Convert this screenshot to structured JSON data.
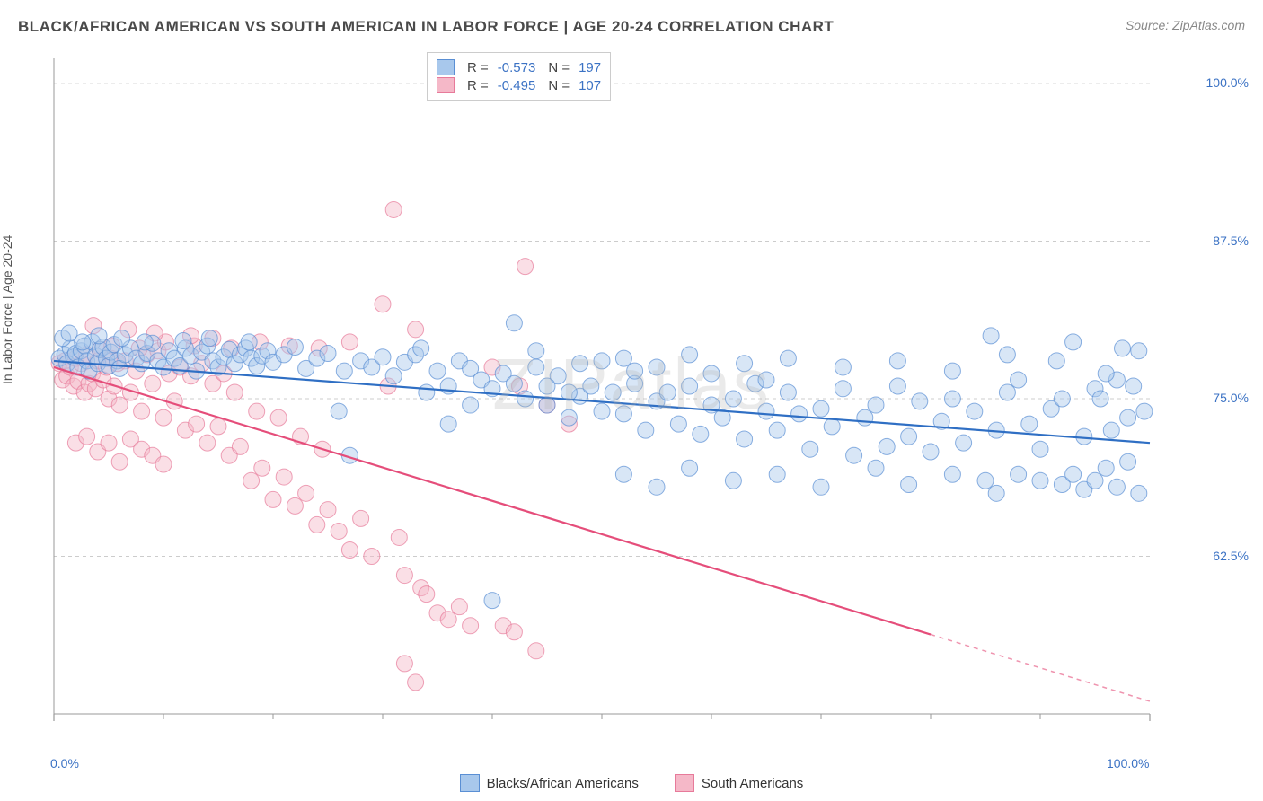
{
  "title": "BLACK/AFRICAN AMERICAN VS SOUTH AMERICAN IN LABOR FORCE | AGE 20-24 CORRELATION CHART",
  "source": "Source: ZipAtlas.com",
  "watermark": "ZIPatlas",
  "y_axis_label": "In Labor Force | Age 20-24",
  "chart": {
    "type": "scatter",
    "xlim": [
      0,
      100
    ],
    "ylim": [
      50,
      102
    ],
    "x_ticks": [
      0,
      100
    ],
    "x_tick_labels": [
      "0.0%",
      "100.0%"
    ],
    "x_minor_ticks": [
      10,
      20,
      30,
      40,
      50,
      60,
      70,
      80,
      90
    ],
    "y_ticks": [
      62.5,
      75.0,
      87.5,
      100.0
    ],
    "y_tick_labels": [
      "62.5%",
      "75.0%",
      "87.5%",
      "100.0%"
    ],
    "background_color": "#ffffff",
    "grid_color": "#cccccc",
    "grid_dash": "4,4",
    "axis_color": "#999999",
    "marker_radius": 9,
    "marker_opacity": 0.45,
    "line_width": 2.2
  },
  "series": [
    {
      "name": "Blacks/African Americans",
      "fill": "#a8c8ec",
      "stroke": "#5a8fd4",
      "line_color": "#2f6fc4",
      "R": "-0.573",
      "N": "197",
      "trend": {
        "x1": 0,
        "y1": 78.0,
        "x2": 100,
        "y2": 71.5,
        "solid_until": 100
      },
      "points": [
        [
          0.5,
          78.2
        ],
        [
          1,
          78.5
        ],
        [
          1.2,
          77.8
        ],
        [
          1.5,
          79.0
        ],
        [
          1.8,
          78.3
        ],
        [
          2,
          78.6
        ],
        [
          2.2,
          77.5
        ],
        [
          2.5,
          78.8
        ],
        [
          2.8,
          79.2
        ],
        [
          3,
          78.0
        ],
        [
          3.2,
          77.2
        ],
        [
          3.5,
          79.5
        ],
        [
          3.8,
          78.4
        ],
        [
          4,
          77.8
        ],
        [
          4.2,
          78.9
        ],
        [
          4.5,
          79.1
        ],
        [
          4.8,
          78.2
        ],
        [
          5,
          77.6
        ],
        [
          5.2,
          78.7
        ],
        [
          5.5,
          79.3
        ],
        [
          5.8,
          78.0
        ],
        [
          6,
          77.4
        ],
        [
          6.5,
          78.5
        ],
        [
          7,
          79.0
        ],
        [
          7.5,
          78.2
        ],
        [
          8,
          77.8
        ],
        [
          8.5,
          78.6
        ],
        [
          9,
          79.4
        ],
        [
          9.5,
          78.0
        ],
        [
          10,
          77.5
        ],
        [
          10.5,
          78.8
        ],
        [
          11,
          78.2
        ],
        [
          11.5,
          77.6
        ],
        [
          12,
          79.0
        ],
        [
          12.5,
          78.4
        ],
        [
          13,
          77.2
        ],
        [
          13.5,
          78.7
        ],
        [
          14,
          79.2
        ],
        [
          14.5,
          78.0
        ],
        [
          15,
          77.5
        ],
        [
          15.5,
          78.3
        ],
        [
          16,
          78.9
        ],
        [
          16.5,
          77.8
        ],
        [
          17,
          78.5
        ],
        [
          17.5,
          79.0
        ],
        [
          18,
          78.2
        ],
        [
          18.5,
          77.6
        ],
        [
          19,
          78.4
        ],
        [
          19.5,
          78.8
        ],
        [
          20,
          77.9
        ],
        [
          21,
          78.5
        ],
        [
          22,
          79.1
        ],
        [
          23,
          77.4
        ],
        [
          24,
          78.2
        ],
        [
          25,
          78.6
        ],
        [
          26,
          74.0
        ],
        [
          26.5,
          77.2
        ],
        [
          27,
          70.5
        ],
        [
          28,
          78.0
        ],
        [
          29,
          77.5
        ],
        [
          30,
          78.3
        ],
        [
          31,
          76.8
        ],
        [
          32,
          77.9
        ],
        [
          33,
          78.5
        ],
        [
          34,
          75.5
        ],
        [
          35,
          77.2
        ],
        [
          36,
          76.0
        ],
        [
          37,
          78.0
        ],
        [
          38,
          77.4
        ],
        [
          39,
          76.5
        ],
        [
          40,
          75.8
        ],
        [
          41,
          77.0
        ],
        [
          42,
          76.2
        ],
        [
          43,
          75.0
        ],
        [
          44,
          77.5
        ],
        [
          45,
          74.5
        ],
        [
          46,
          76.8
        ],
        [
          47,
          73.5
        ],
        [
          48,
          75.2
        ],
        [
          49,
          76.0
        ],
        [
          50,
          74.0
        ],
        [
          51,
          75.5
        ],
        [
          52,
          73.8
        ],
        [
          53,
          76.2
        ],
        [
          54,
          72.5
        ],
        [
          55,
          74.8
        ],
        [
          56,
          75.5
        ],
        [
          57,
          73.0
        ],
        [
          58,
          76.0
        ],
        [
          59,
          72.2
        ],
        [
          60,
          74.5
        ],
        [
          61,
          73.5
        ],
        [
          62,
          75.0
        ],
        [
          63,
          71.8
        ],
        [
          64,
          76.2
        ],
        [
          65,
          74.0
        ],
        [
          66,
          72.5
        ],
        [
          67,
          75.5
        ],
        [
          68,
          73.8
        ],
        [
          69,
          71.0
        ],
        [
          70,
          74.2
        ],
        [
          71,
          72.8
        ],
        [
          72,
          75.8
        ],
        [
          73,
          70.5
        ],
        [
          74,
          73.5
        ],
        [
          75,
          74.5
        ],
        [
          76,
          71.2
        ],
        [
          77,
          76.0
        ],
        [
          78,
          72.0
        ],
        [
          79,
          74.8
        ],
        [
          80,
          70.8
        ],
        [
          81,
          73.2
        ],
        [
          82,
          75.0
        ],
        [
          83,
          71.5
        ],
        [
          84,
          74.0
        ],
        [
          85,
          68.5
        ],
        [
          86,
          72.5
        ],
        [
          87,
          75.5
        ],
        [
          88,
          69.0
        ],
        [
          89,
          73.0
        ],
        [
          90,
          71.0
        ],
        [
          91,
          74.2
        ],
        [
          92,
          68.2
        ],
        [
          93,
          79.5
        ],
        [
          94,
          72.0
        ],
        [
          95,
          75.8
        ],
        [
          96,
          69.5
        ],
        [
          97,
          76.5
        ],
        [
          98,
          73.5
        ],
        [
          99,
          78.8
        ],
        [
          0.8,
          79.8
        ],
        [
          1.4,
          80.2
        ],
        [
          2.6,
          79.5
        ],
        [
          4.1,
          80.0
        ],
        [
          6.2,
          79.8
        ],
        [
          8.3,
          79.5
        ],
        [
          11.8,
          79.6
        ],
        [
          14.2,
          79.8
        ],
        [
          17.8,
          79.5
        ],
        [
          33.5,
          79.0
        ],
        [
          40,
          59.0
        ],
        [
          42,
          81.0
        ],
        [
          52,
          69.0
        ],
        [
          55,
          68.0
        ],
        [
          58,
          69.5
        ],
        [
          62,
          68.5
        ],
        [
          66,
          69.0
        ],
        [
          70,
          68.0
        ],
        [
          75,
          69.5
        ],
        [
          78,
          68.2
        ],
        [
          82,
          69.0
        ],
        [
          85.5,
          80.0
        ],
        [
          86,
          67.5
        ],
        [
          88,
          76.5
        ],
        [
          90,
          68.5
        ],
        [
          91.5,
          78.0
        ],
        [
          92,
          75.0
        ],
        [
          93,
          69.0
        ],
        [
          94,
          67.8
        ],
        [
          95,
          68.5
        ],
        [
          95.5,
          75.0
        ],
        [
          96,
          77.0
        ],
        [
          96.5,
          72.5
        ],
        [
          97,
          68.0
        ],
        [
          97.5,
          79.0
        ],
        [
          98,
          70.0
        ],
        [
          98.5,
          76.0
        ],
        [
          99,
          67.5
        ],
        [
          99.5,
          74.0
        ],
        [
          50,
          78.0
        ],
        [
          55,
          77.5
        ],
        [
          60,
          77.0
        ],
        [
          65,
          76.5
        ],
        [
          48,
          77.8
        ],
        [
          53,
          77.2
        ],
        [
          58,
          78.5
        ],
        [
          63,
          77.8
        ],
        [
          67,
          78.2
        ],
        [
          72,
          77.5
        ],
        [
          77,
          78.0
        ],
        [
          82,
          77.2
        ],
        [
          87,
          78.5
        ],
        [
          44,
          78.8
        ],
        [
          52,
          78.2
        ],
        [
          45,
          76.0
        ],
        [
          47,
          75.5
        ],
        [
          38,
          74.5
        ],
        [
          36,
          73.0
        ]
      ]
    },
    {
      "name": "South Americans",
      "fill": "#f5b8c8",
      "stroke": "#e77a9a",
      "line_color": "#e54d7a",
      "R": "-0.495",
      "N": "107",
      "trend": {
        "x1": 0,
        "y1": 77.5,
        "x2": 100,
        "y2": 51.0,
        "solid_until": 80
      },
      "points": [
        [
          0.5,
          77.8
        ],
        [
          0.8,
          76.5
        ],
        [
          1,
          78.0
        ],
        [
          1.2,
          76.8
        ],
        [
          1.5,
          77.5
        ],
        [
          1.8,
          76.0
        ],
        [
          2,
          78.2
        ],
        [
          2.2,
          76.4
        ],
        [
          2.5,
          77.8
        ],
        [
          2.8,
          75.5
        ],
        [
          3,
          78.5
        ],
        [
          3.2,
          76.2
        ],
        [
          3.5,
          77.0
        ],
        [
          3.8,
          75.8
        ],
        [
          4,
          78.0
        ],
        [
          4.2,
          78.9
        ],
        [
          4.5,
          76.5
        ],
        [
          4.8,
          77.5
        ],
        [
          5,
          75.0
        ],
        [
          5.2,
          78.2
        ],
        [
          5.5,
          76.0
        ],
        [
          5.8,
          77.8
        ],
        [
          6,
          74.5
        ],
        [
          6.5,
          78.0
        ],
        [
          7,
          75.5
        ],
        [
          7.5,
          77.2
        ],
        [
          8,
          74.0
        ],
        [
          8.5,
          78.5
        ],
        [
          9,
          76.2
        ],
        [
          9.5,
          78.8
        ],
        [
          10,
          73.5
        ],
        [
          10.5,
          77.0
        ],
        [
          11,
          74.8
        ],
        [
          11.5,
          77.5
        ],
        [
          12,
          72.5
        ],
        [
          12.5,
          76.8
        ],
        [
          13,
          73.0
        ],
        [
          13.5,
          77.8
        ],
        [
          14,
          71.5
        ],
        [
          14.5,
          76.2
        ],
        [
          15,
          72.8
        ],
        [
          15.5,
          77.0
        ],
        [
          16,
          70.5
        ],
        [
          16.5,
          75.5
        ],
        [
          17,
          71.2
        ],
        [
          18,
          68.5
        ],
        [
          18.5,
          74.0
        ],
        [
          19,
          69.5
        ],
        [
          20,
          67.0
        ],
        [
          20.5,
          73.5
        ],
        [
          21,
          68.8
        ],
        [
          22,
          66.5
        ],
        [
          22.5,
          72.0
        ],
        [
          23,
          67.5
        ],
        [
          24,
          65.0
        ],
        [
          24.5,
          71.0
        ],
        [
          25,
          66.2
        ],
        [
          26,
          64.5
        ],
        [
          27,
          63.0
        ],
        [
          28,
          65.5
        ],
        [
          29,
          62.5
        ],
        [
          30,
          82.5
        ],
        [
          31,
          90.0
        ],
        [
          31.5,
          64.0
        ],
        [
          32,
          61.0
        ],
        [
          33,
          80.5
        ],
        [
          33.5,
          60.0
        ],
        [
          34,
          59.5
        ],
        [
          35,
          58.0
        ],
        [
          36,
          57.5
        ],
        [
          37,
          58.5
        ],
        [
          38,
          57.0
        ],
        [
          40,
          77.5
        ],
        [
          41,
          57.0
        ],
        [
          42,
          56.5
        ],
        [
          42.5,
          76.0
        ],
        [
          43,
          85.5
        ],
        [
          44,
          55.0
        ],
        [
          45,
          74.5
        ],
        [
          47,
          73.0
        ],
        [
          32,
          54.0
        ],
        [
          33,
          52.5
        ],
        [
          2,
          71.5
        ],
        [
          3,
          72.0
        ],
        [
          4,
          70.8
        ],
        [
          5,
          71.5
        ],
        [
          6,
          70.0
        ],
        [
          7,
          71.8
        ],
        [
          8,
          71.0
        ],
        [
          9,
          70.5
        ],
        [
          10,
          69.8
        ],
        [
          5.3,
          79.2
        ],
        [
          7.8,
          79.0
        ],
        [
          10.2,
          79.5
        ],
        [
          12.8,
          79.2
        ],
        [
          14.5,
          79.8
        ],
        [
          16.2,
          79.0
        ],
        [
          18.8,
          79.5
        ],
        [
          21.5,
          79.2
        ],
        [
          24.2,
          79.0
        ],
        [
          27,
          79.5
        ],
        [
          6.8,
          80.5
        ],
        [
          9.2,
          80.2
        ],
        [
          3.6,
          80.8
        ],
        [
          12.5,
          80.0
        ],
        [
          30.5,
          76.0
        ]
      ]
    }
  ],
  "stats_legend": {
    "R_label": "R =",
    "N_label": "N ="
  },
  "bottom_legend": [
    {
      "label": "Blacks/African Americans",
      "fill": "#a8c8ec",
      "stroke": "#5a8fd4"
    },
    {
      "label": "South Americans",
      "fill": "#f5b8c8",
      "stroke": "#e77a9a"
    }
  ]
}
